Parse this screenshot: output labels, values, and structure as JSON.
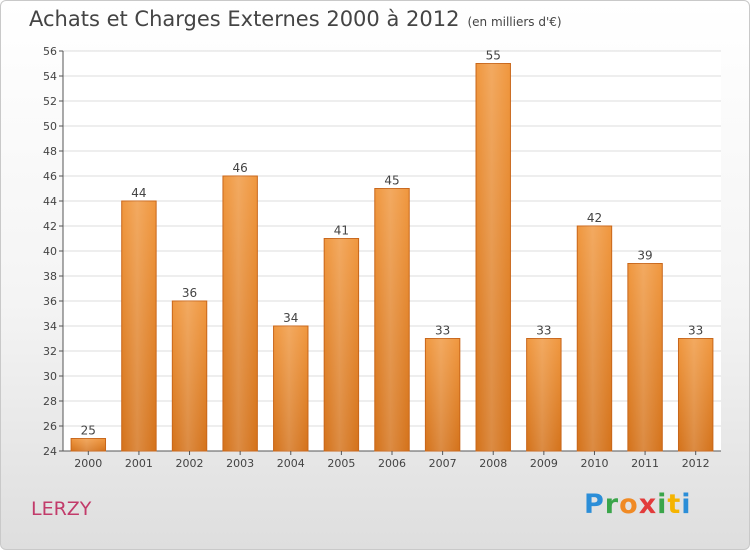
{
  "title": "Achats et Charges Externes 2000 à 2012",
  "subtitle": "(en milliers d'€)",
  "commune": "LERZY",
  "logo_text": "Proxiti",
  "colors": {
    "bar": "#f0973e",
    "bar_dark": "#d4721a",
    "grid": "#dcdcdc",
    "axis": "#555555",
    "commune": "#c23b6a"
  },
  "chart_data": {
    "type": "bar",
    "title": "Achats et Charges Externes 2000 à 2012",
    "subtitle": "(en milliers d'€)",
    "categories": [
      "2000",
      "2001",
      "2002",
      "2003",
      "2004",
      "2005",
      "2006",
      "2007",
      "2008",
      "2009",
      "2010",
      "2011",
      "2012"
    ],
    "values": [
      25,
      44,
      36,
      46,
      34,
      41,
      45,
      33,
      55,
      33,
      42,
      39,
      33
    ],
    "ylim": [
      24,
      56
    ],
    "yticks": [
      24,
      26,
      28,
      30,
      32,
      34,
      36,
      38,
      40,
      42,
      44,
      46,
      48,
      50,
      52,
      54,
      56
    ],
    "grid": true,
    "data_labels": true
  }
}
